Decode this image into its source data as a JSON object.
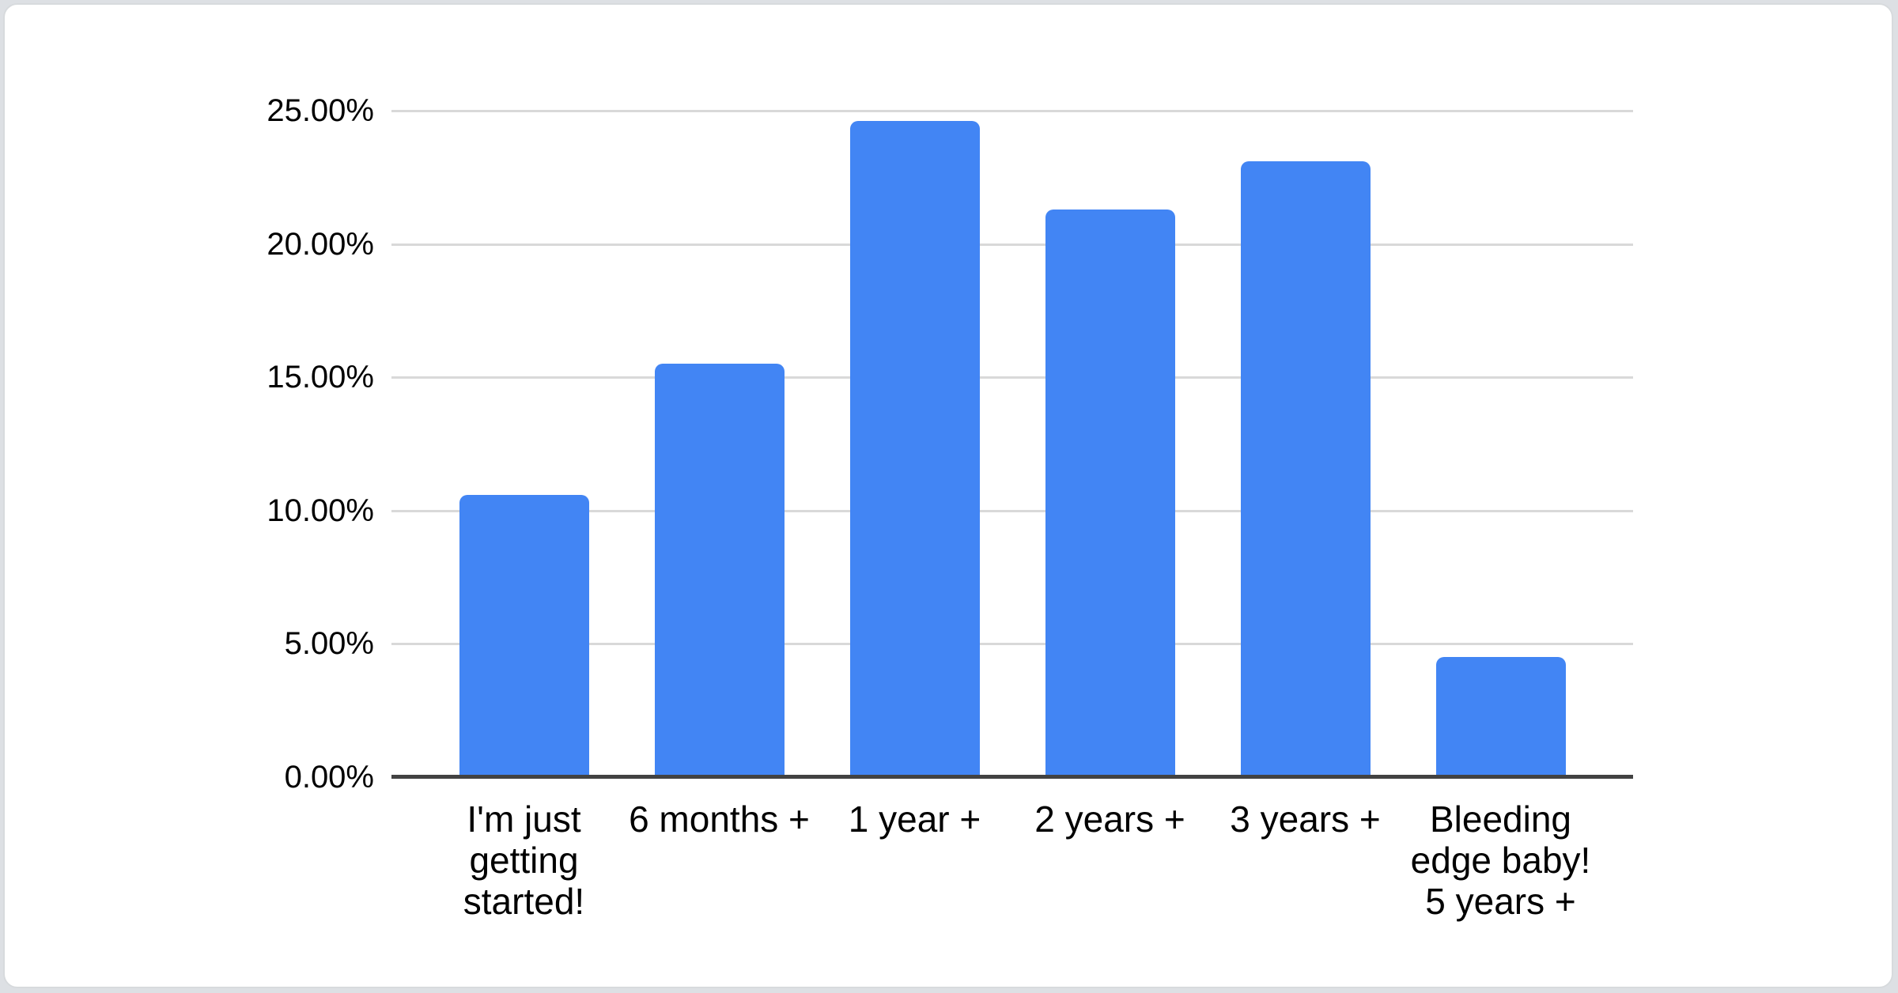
{
  "page": {
    "background_color": "#dde0e4",
    "card_background_color": "#ffffff",
    "card_border_color": "#d7dadd"
  },
  "chart_data": {
    "type": "bar",
    "title": "",
    "categories": [
      "I'm just getting started!",
      "6 months +",
      "1 year +",
      "2 years +",
      "3 years +",
      "Bleeding edge baby! 5 years +"
    ],
    "values": [
      10.6,
      15.5,
      24.6,
      21.3,
      23.1,
      4.5
    ],
    "xlabel": "",
    "ylabel": "",
    "ylim": [
      0,
      25
    ],
    "yticks": [
      {
        "value": 0,
        "label": "0.00%"
      },
      {
        "value": 5,
        "label": "5.00%"
      },
      {
        "value": 10,
        "label": "10.00%"
      },
      {
        "value": 15,
        "label": "15.00%"
      },
      {
        "value": 20,
        "label": "20.00%"
      },
      {
        "value": 25,
        "label": "25.00%"
      }
    ],
    "grid": true,
    "legend": "none",
    "bar_color": "#4285f4",
    "gridline_color": "#d9d9d9",
    "baseline_color": "#424242",
    "label_color": "#000000"
  }
}
